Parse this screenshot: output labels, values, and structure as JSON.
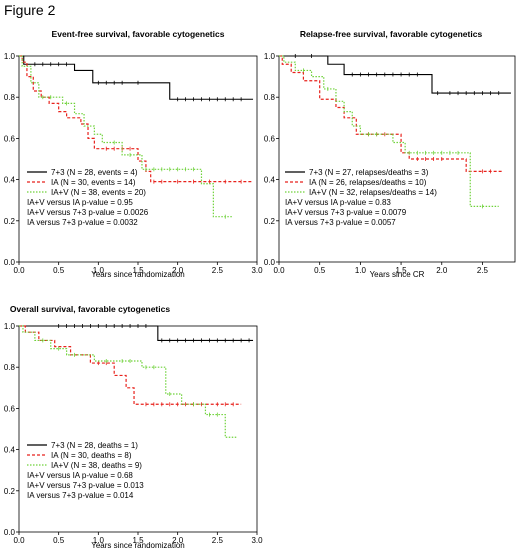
{
  "figure_label": "Figure 2",
  "colors": {
    "7+3": "#000000",
    "IA": "#e8221c",
    "IA+V": "#6fd23a"
  },
  "chart_data": [
    {
      "type": "line",
      "title": "Event-free survival, favorable cytogenetics",
      "xlabel": "Years since randomization",
      "ylabel": "",
      "xlim": [
        0,
        3
      ],
      "ylim": [
        0,
        1
      ],
      "xticks": [
        "0.0",
        "0.5",
        "1.0",
        "1.5",
        "2.0",
        "2.5",
        "3.0"
      ],
      "yticks": [
        "0.0",
        "0.2",
        "0.4",
        "0.6",
        "0.8",
        "1.0"
      ],
      "grid": false,
      "legend_position": "bottom-left",
      "series": [
        {
          "name": "7+3 (N = 28, events = 4)",
          "style": "solid",
          "steps": [
            [
              0,
              1
            ],
            [
              0.06,
              0.96
            ],
            [
              0.7,
              0.93
            ],
            [
              0.93,
              0.87
            ],
            [
              1.9,
              0.79
            ],
            [
              2.95,
              0.79
            ]
          ],
          "censor": [
            0.2,
            0.3,
            0.4,
            0.5,
            0.6,
            1.0,
            1.1,
            1.2,
            1.3,
            1.5,
            2.0,
            2.1,
            2.2,
            2.3,
            2.4,
            2.5,
            2.6,
            2.7,
            2.8
          ]
        },
        {
          "name": "IA (N = 30, events = 14)",
          "style": "dashed",
          "steps": [
            [
              0,
              1
            ],
            [
              0.04,
              0.97
            ],
            [
              0.1,
              0.9
            ],
            [
              0.18,
              0.83
            ],
            [
              0.28,
              0.8
            ],
            [
              0.38,
              0.77
            ],
            [
              0.5,
              0.73
            ],
            [
              0.6,
              0.7
            ],
            [
              0.78,
              0.67
            ],
            [
              0.87,
              0.6
            ],
            [
              0.95,
              0.55
            ],
            [
              1.5,
              0.49
            ],
            [
              1.6,
              0.44
            ],
            [
              1.66,
              0.39
            ],
            [
              2.95,
              0.39
            ]
          ],
          "censor": [
            1.1,
            1.2,
            1.3,
            1.4,
            1.7,
            1.8,
            2.0,
            2.2,
            2.4,
            2.6,
            2.8
          ]
        },
        {
          "name": "IA+V (N = 38, events = 20)",
          "style": "dotted",
          "steps": [
            [
              0,
              1
            ],
            [
              0.04,
              0.95
            ],
            [
              0.15,
              0.87
            ],
            [
              0.25,
              0.8
            ],
            [
              0.55,
              0.77
            ],
            [
              0.7,
              0.72
            ],
            [
              0.82,
              0.66
            ],
            [
              0.95,
              0.62
            ],
            [
              1.05,
              0.58
            ],
            [
              1.3,
              0.52
            ],
            [
              1.55,
              0.45
            ],
            [
              2.3,
              0.38
            ],
            [
              2.45,
              0.22
            ],
            [
              2.7,
              0.22
            ]
          ],
          "censor": [
            0.3,
            0.4,
            0.6,
            1.2,
            1.4,
            1.6,
            1.7,
            1.8,
            1.9,
            2.0,
            2.1,
            2.2,
            2.6
          ]
        }
      ],
      "annotations": [
        "IA+V versus IA p-value = 0.95",
        "IA+V versus 7+3 p-value = 0.0026",
        "IA versus 7+3 p-value = 0.0032"
      ]
    },
    {
      "type": "line",
      "title": "Relapse-free survival, favorable cytogenetics",
      "xlabel": "Years since CR",
      "ylabel": "",
      "xlim": [
        0,
        2.9
      ],
      "ylim": [
        0,
        1
      ],
      "xticks": [
        "0.0",
        "0.5",
        "1.0",
        "1.5",
        "2.0",
        "2.5"
      ],
      "yticks": [
        "0.0",
        "0.2",
        "0.4",
        "0.6",
        "0.8",
        "1.0"
      ],
      "grid": false,
      "legend_position": "bottom-left",
      "series": [
        {
          "name": "7+3 (N = 27, relapses/deaths = 3)",
          "style": "solid",
          "steps": [
            [
              0,
              1
            ],
            [
              0.6,
              0.96
            ],
            [
              0.8,
              0.91
            ],
            [
              1.88,
              0.82
            ],
            [
              2.85,
              0.82
            ]
          ],
          "censor": [
            0.2,
            0.4,
            0.9,
            1.0,
            1.1,
            1.2,
            1.3,
            1.4,
            1.5,
            1.6,
            1.7,
            1.95,
            2.1,
            2.2,
            2.3,
            2.4,
            2.5,
            2.6,
            2.7
          ]
        },
        {
          "name": "IA (N = 26, relapses/deaths = 10)",
          "style": "dashed",
          "steps": [
            [
              0,
              1
            ],
            [
              0.04,
              0.96
            ],
            [
              0.15,
              0.92
            ],
            [
              0.3,
              0.88
            ],
            [
              0.5,
              0.79
            ],
            [
              0.7,
              0.75
            ],
            [
              0.8,
              0.7
            ],
            [
              0.95,
              0.62
            ],
            [
              1.5,
              0.53
            ],
            [
              1.6,
              0.5
            ],
            [
              2.3,
              0.44
            ],
            [
              2.75,
              0.44
            ]
          ],
          "censor": [
            1.1,
            1.2,
            1.3,
            1.7,
            1.8,
            1.9,
            2.0,
            2.5,
            2.6
          ]
        },
        {
          "name": "IA+V (N = 32, relapses/deaths = 14)",
          "style": "dotted",
          "steps": [
            [
              0,
              1
            ],
            [
              0.06,
              0.97
            ],
            [
              0.2,
              0.93
            ],
            [
              0.4,
              0.9
            ],
            [
              0.55,
              0.84
            ],
            [
              0.7,
              0.78
            ],
            [
              0.8,
              0.73
            ],
            [
              0.9,
              0.66
            ],
            [
              1.0,
              0.62
            ],
            [
              1.4,
              0.58
            ],
            [
              1.55,
              0.53
            ],
            [
              2.35,
              0.27
            ],
            [
              2.7,
              0.27
            ]
          ],
          "censor": [
            0.3,
            0.6,
            1.1,
            1.2,
            1.6,
            1.7,
            1.8,
            1.9,
            2.0,
            2.1,
            2.2,
            2.5
          ]
        }
      ],
      "annotations": [
        "IA+V versus IA p-value = 0.83",
        "IA+V versus 7+3 p-value = 0.0079",
        "IA versus 7+3 p-value = 0.0057"
      ]
    },
    {
      "type": "line",
      "title": "Overall survival, favorable cytogenetics",
      "xlabel": "Years since randomization",
      "ylabel": "",
      "xlim": [
        0,
        3
      ],
      "ylim": [
        0,
        1
      ],
      "xticks": [
        "0.0",
        "0.5",
        "1.0",
        "1.5",
        "2.0",
        "2.5",
        "3.0"
      ],
      "yticks": [
        "0.0",
        "0.2",
        "0.4",
        "0.6",
        "0.8",
        "1.0"
      ],
      "grid": false,
      "legend_position": "bottom-left",
      "series": [
        {
          "name": "7+3 (N = 28, deaths = 1)",
          "style": "solid",
          "steps": [
            [
              0,
              1
            ],
            [
              1.75,
              0.93
            ],
            [
              2.95,
              0.93
            ]
          ],
          "censor": [
            0.5,
            0.6,
            0.7,
            0.8,
            0.9,
            1.0,
            1.1,
            1.2,
            1.3,
            1.4,
            1.5,
            1.6,
            1.8,
            1.9,
            2.0,
            2.1,
            2.2,
            2.3,
            2.4,
            2.5,
            2.6,
            2.7,
            2.8,
            2.9
          ]
        },
        {
          "name": "IA (N = 30, deaths = 8)",
          "style": "dashed",
          "steps": [
            [
              0,
              1
            ],
            [
              0.08,
              0.97
            ],
            [
              0.25,
              0.93
            ],
            [
              0.45,
              0.9
            ],
            [
              0.65,
              0.86
            ],
            [
              0.9,
              0.82
            ],
            [
              1.2,
              0.76
            ],
            [
              1.35,
              0.7
            ],
            [
              1.45,
              0.62
            ],
            [
              2.8,
              0.62
            ]
          ],
          "censor": [
            1.0,
            1.1,
            1.6,
            1.7,
            1.8,
            1.9,
            2.0,
            2.1,
            2.2,
            2.3,
            2.5,
            2.6,
            2.7
          ]
        },
        {
          "name": "IA+V (N = 38, deaths = 9)",
          "style": "dotted",
          "steps": [
            [
              0,
              1
            ],
            [
              0.05,
              0.97
            ],
            [
              0.2,
              0.93
            ],
            [
              0.4,
              0.89
            ],
            [
              0.6,
              0.86
            ],
            [
              0.95,
              0.83
            ],
            [
              1.55,
              0.8
            ],
            [
              1.85,
              0.67
            ],
            [
              2.05,
              0.62
            ],
            [
              2.35,
              0.57
            ],
            [
              2.6,
              0.46
            ],
            [
              2.75,
              0.46
            ]
          ],
          "censor": [
            0.3,
            0.5,
            0.7,
            1.1,
            1.3,
            1.4,
            1.6,
            1.7,
            1.9,
            2.2,
            2.4,
            2.5
          ]
        }
      ],
      "annotations": [
        "IA+V versus IA p-value = 0.68",
        "IA+V versus 7+3 p-value = 0.013",
        "IA versus 7+3 p-value = 0.014"
      ]
    }
  ]
}
